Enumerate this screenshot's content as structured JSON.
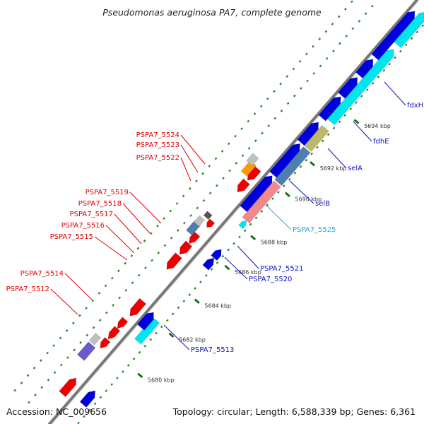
{
  "title": "Pseudomonas aeruginosa PA7, complete genome",
  "footer": {
    "accession": "Accession: NC_009656",
    "topology": "Topology: circular; Length: 6,588,339 bp; Genes: 6,361"
  },
  "colors": {
    "background": "#ffffff",
    "backbone": "#777777",
    "tick_dots": "#2e8b2e",
    "kbp_tick": "#1a6e1a",
    "forward_gene": "#0000dd",
    "reverse_gene": "#ee0000",
    "cyan_gene": "#00e5ee",
    "salmon_gene": "#f08a8a",
    "steel_gene": "#4f7fae",
    "khaki_gene": "#bdb76b",
    "orange_gene": "#ff9900",
    "grey_gene": "#c0c0c0",
    "darkgrey_gene": "#555555",
    "slate_gene": "#6a5acd",
    "label_red": "#e00000",
    "label_blue": "#1010c0",
    "label_cyan": "#22aadd"
  },
  "scale": {
    "unit": "kbp",
    "ticks": [
      "5680 kbp",
      "5682 kbp",
      "5684 kbp",
      "5686 kbp",
      "5688 kbp",
      "5690 kbp",
      "5692 kbp",
      "5694 kbp"
    ]
  },
  "gene_labels": {
    "reverse": [
      "PSPA7_5524",
      "PSPA7_5523",
      "PSPA7_5522",
      "PSPA7_5519",
      "PSPA7_5518",
      "PSPA7_5517",
      "PSPA7_5516",
      "PSPA7_5515",
      "PSPA7_5514",
      "PSPA7_5512"
    ],
    "forward": [
      "fdxH",
      "fdhE",
      "selA",
      "selB",
      "PSPA7_5525",
      "PSPA7_5521",
      "PSPA7_5520",
      "PSPA7_5513"
    ]
  }
}
